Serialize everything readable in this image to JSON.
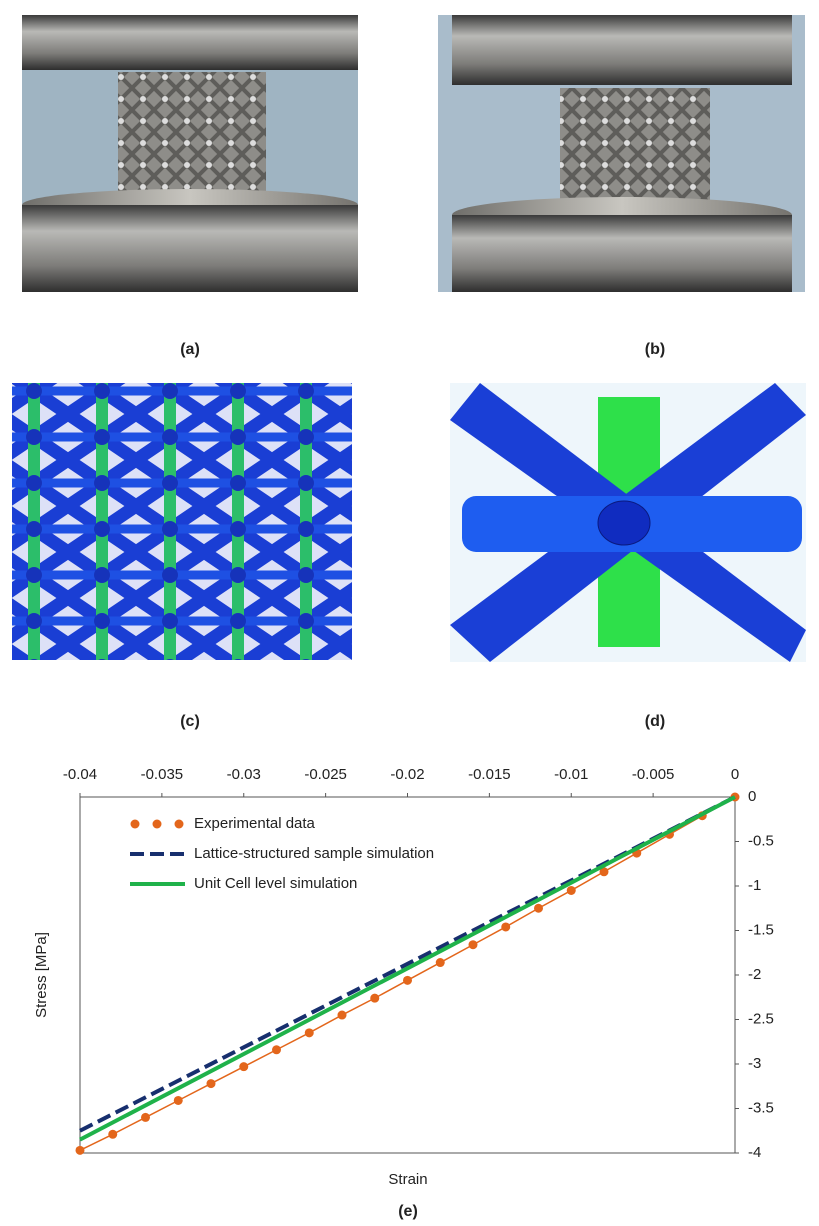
{
  "panel_labels": [
    "(a)",
    "(b)",
    "(c)",
    "(d)",
    "(e)"
  ],
  "chart_data": {
    "type": "line",
    "x_label": "Strain",
    "y_label": "Stress [MPa]",
    "xlim": [
      -0.04,
      0
    ],
    "ylim": [
      -4,
      0
    ],
    "xticks": [
      -0.04,
      -0.035,
      -0.03,
      -0.025,
      -0.02,
      -0.015,
      -0.01,
      -0.005,
      0
    ],
    "yticks": [
      0,
      -0.5,
      -1,
      -1.5,
      -2,
      -2.5,
      -3,
      -3.5,
      -4
    ],
    "legend": "upper-left",
    "series": [
      {
        "name": "Experimental data",
        "color": "#e3661b",
        "style": "dotted-markers",
        "x": [
          -0.04,
          -0.038,
          -0.036,
          -0.034,
          -0.032,
          -0.03,
          -0.028,
          -0.026,
          -0.024,
          -0.022,
          -0.02,
          -0.018,
          -0.016,
          -0.014,
          -0.012,
          -0.01,
          -0.008,
          -0.006,
          -0.004,
          -0.002,
          0
        ],
        "values": [
          -3.97,
          -3.79,
          -3.6,
          -3.41,
          -3.22,
          -3.03,
          -2.84,
          -2.65,
          -2.45,
          -2.26,
          -2.06,
          -1.86,
          -1.66,
          -1.46,
          -1.25,
          -1.05,
          -0.84,
          -0.63,
          -0.42,
          -0.21,
          0
        ]
      },
      {
        "name": "Lattice-structured sample simulation",
        "color": "#172f6e",
        "style": "dashed",
        "x": [
          -0.04,
          0
        ],
        "values": [
          -3.75,
          0
        ]
      },
      {
        "name": "Unit Cell level simulation",
        "color": "#1fb24a",
        "style": "solid",
        "x": [
          -0.04,
          0
        ],
        "values": [
          -3.85,
          0
        ]
      }
    ]
  }
}
